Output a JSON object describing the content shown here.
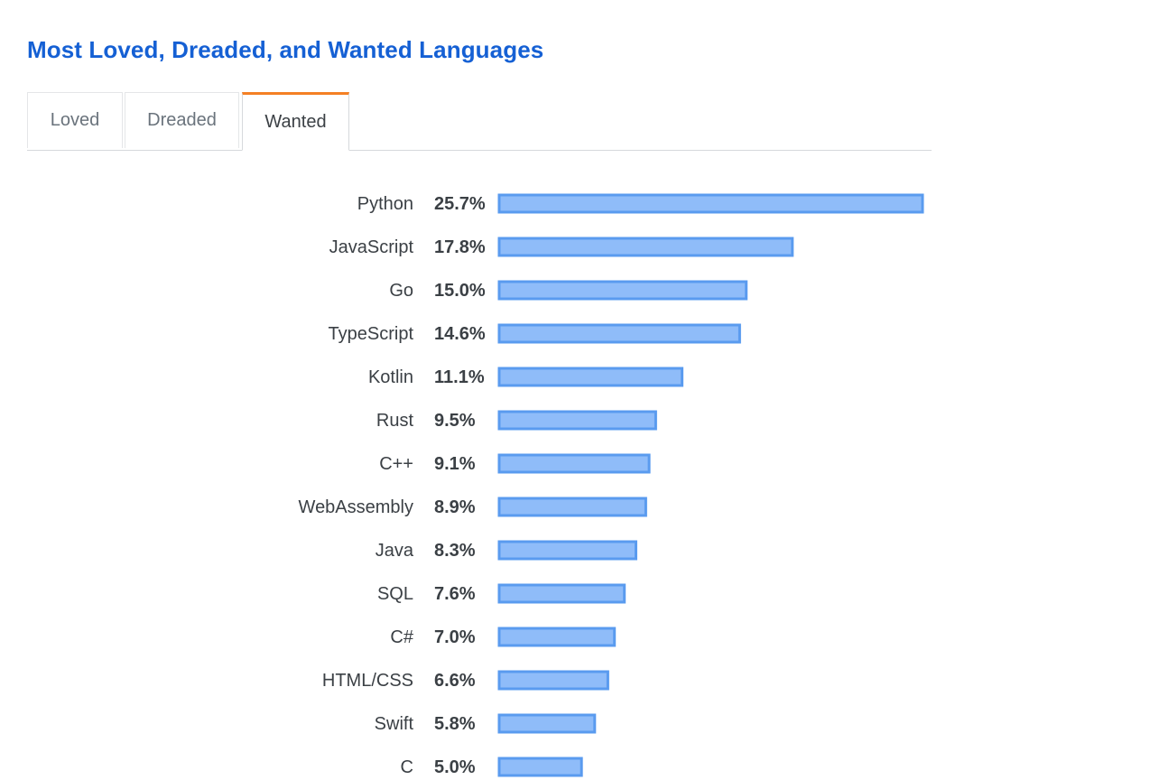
{
  "page": {
    "title": "Most Loved, Dreaded, and Wanted Languages"
  },
  "tabs": [
    {
      "label": "Loved",
      "active": false
    },
    {
      "label": "Dreaded",
      "active": false
    },
    {
      "label": "Wanted",
      "active": true
    }
  ],
  "colors": {
    "title": "#1560d4",
    "bar_fill": "#8fbcf9",
    "bar_stroke": "#5a9bef",
    "tab_accent": "#f48024"
  },
  "chart_data": {
    "type": "bar",
    "orientation": "horizontal",
    "categories": [
      "Python",
      "JavaScript",
      "Go",
      "TypeScript",
      "Kotlin",
      "Rust",
      "C++",
      "WebAssembly",
      "Java",
      "SQL",
      "C#",
      "HTML/CSS",
      "Swift",
      "C"
    ],
    "values": [
      25.7,
      17.8,
      15.0,
      14.6,
      11.1,
      9.5,
      9.1,
      8.9,
      8.3,
      7.6,
      7.0,
      6.6,
      5.8,
      5.0
    ],
    "value_labels": [
      "25.7%",
      "17.8%",
      "15.0%",
      "14.6%",
      "11.1%",
      "9.5%",
      "9.1%",
      "8.9%",
      "8.3%",
      "7.6%",
      "7.0%",
      "6.6%",
      "5.8%",
      "5.0%"
    ],
    "unit": "%",
    "xlim": [
      0,
      25.7
    ],
    "grid": false
  }
}
